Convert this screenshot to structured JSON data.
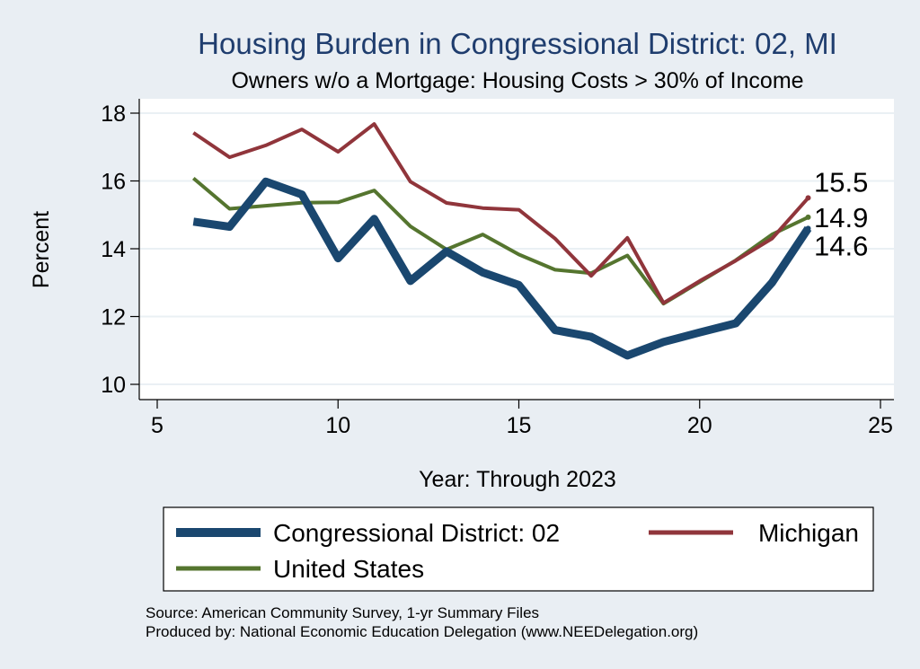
{
  "chart_data": {
    "type": "line",
    "title": "Housing Burden in Congressional District:  02, MI",
    "subtitle": "Owners w/o a Mortgage: Housing Costs > 30% of Income",
    "xlabel": "Year: Through 2023",
    "ylabel": "Percent",
    "xlim": [
      5,
      25
    ],
    "ylim": [
      10,
      18
    ],
    "x_ticks": [
      5,
      10,
      15,
      20,
      25
    ],
    "y_ticks": [
      10,
      12,
      14,
      16,
      18
    ],
    "grid": true,
    "legend_position": "bottom",
    "x": [
      6,
      7,
      8,
      9,
      10,
      11,
      12,
      13,
      14,
      15,
      16,
      17,
      18,
      19,
      20,
      21,
      22,
      23
    ],
    "series": [
      {
        "name": "Congressional District:  02",
        "color": "#1a476f",
        "values": [
          14.8,
          14.65,
          15.98,
          15.6,
          13.72,
          14.88,
          13.05,
          13.92,
          13.3,
          12.93,
          11.6,
          11.4,
          10.85,
          11.25,
          11.53,
          11.8,
          13.0,
          14.6
        ],
        "end_label": "14.6"
      },
      {
        "name": "Michigan",
        "color": "#90353b",
        "values": [
          17.42,
          16.7,
          17.05,
          17.52,
          16.86,
          17.68,
          15.98,
          15.35,
          15.2,
          15.15,
          14.3,
          13.2,
          14.32,
          12.4,
          13.05,
          13.65,
          14.3,
          15.5
        ],
        "end_label": "15.5"
      },
      {
        "name": "United States",
        "color": "#55752f",
        "values": [
          16.08,
          15.18,
          15.27,
          15.36,
          15.37,
          15.72,
          14.66,
          13.98,
          14.42,
          13.83,
          13.38,
          13.28,
          13.8,
          12.38,
          13.02,
          13.66,
          14.42,
          14.93
        ],
        "end_label": "14.9"
      }
    ],
    "notes": [
      "Source: American Community Survey, 1-yr Summary Files",
      "Produced by: National Economic Education Delegation (www.NEEDelegation.org)"
    ]
  }
}
